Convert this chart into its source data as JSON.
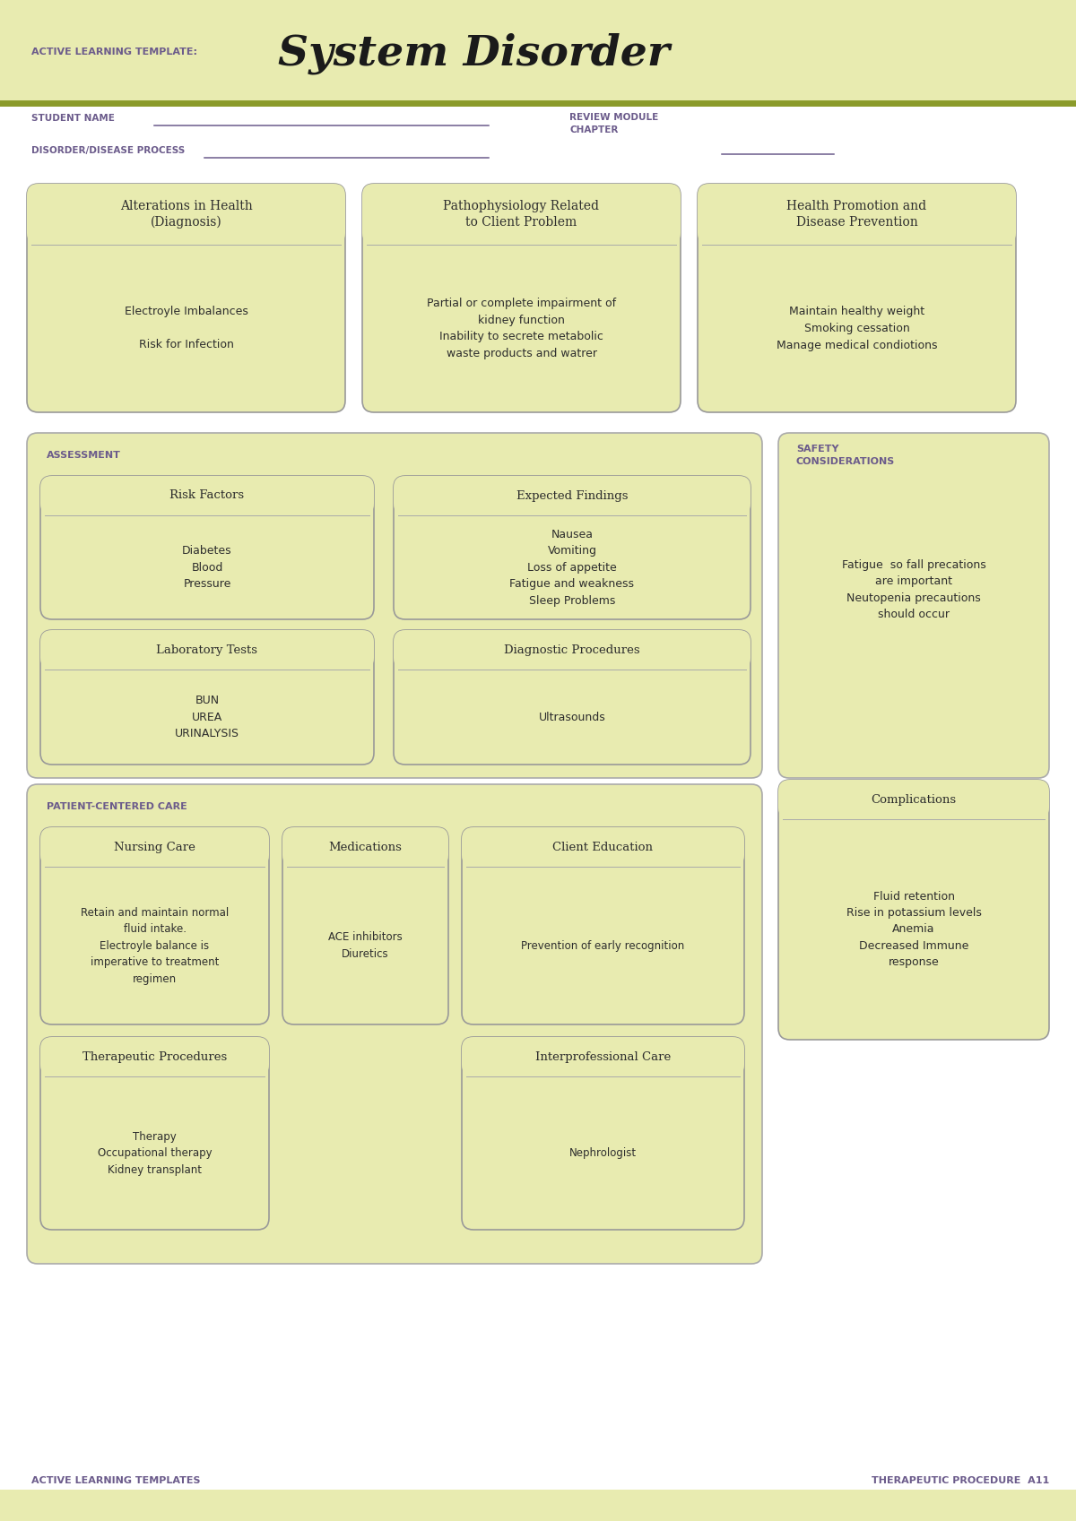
{
  "white": "#ffffff",
  "header_bg": "#e8ebb0",
  "box_bg": "#e8ebb0",
  "box_border": "#aaaaaa",
  "purple_text": "#6b5b8b",
  "dark_text": "#2d2d2d",
  "olive_line": "#8b9b2b",
  "title_large": "System Disorder",
  "title_small": "ACTIVE LEARNING TEMPLATE:",
  "student_name_label": "STUDENT NAME",
  "disorder_label": "DISORDER/DISEASE PROCESS",
  "review_module_label": "REVIEW MODULE\nCHAPTER",
  "assessment_label": "ASSESSMENT",
  "safety_label": "SAFETY\nCONSIDERATIONS",
  "patient_care_label": "PATIENT-CENTERED CARE",
  "footer_left": "ACTIVE LEARNING TEMPLATES",
  "footer_right": "THERAPEUTIC PROCEDURE  A11",
  "box1_title": "Alterations in Health\n(Diagnosis)",
  "box1_content": "Electroyle Imbalances\n\nRisk for Infection",
  "box2_title": "Pathophysiology Related\nto Client Problem",
  "box2_content": "Partial or complete impairment of\nkidney function\nInability to secrete metabolic\nwaste products and watrer",
  "box3_title": "Health Promotion and\nDisease Prevention",
  "box3_content": "Maintain healthy weight\nSmoking cessation\nManage medical condiotions",
  "risk_title": "Risk Factors",
  "risk_content": "Diabetes\nBlood\nPressure",
  "expected_title": "Expected Findings",
  "expected_content": "Nausea\nVomiting\nLoss of appetite\nFatigue and weakness\nSleep Problems",
  "safety_content": "Fatigue  so fall precations\nare important\nNeutopenia precautions\nshould occur",
  "lab_title": "Laboratory Tests",
  "lab_content": "BUN\nUREA\nURINALYSIS",
  "diag_title": "Diagnostic Procedures",
  "diag_content": "Ultrasounds",
  "complications_title": "Complications",
  "complications_content": "Fluid retention\nRise in potassium levels\nAnemia\nDecreased Immune\nresponse",
  "nursing_title": "Nursing Care",
  "nursing_content": "Retain and maintain normal\nfluid intake.\nElectroyle balance is\nimperative to treatment\nregimen",
  "meds_title": "Medications",
  "meds_content": "ACE inhibitors\nDiuretics",
  "client_title": "Client Education",
  "client_content": "Prevention of early recognition",
  "therapy_title": "Therapeutic Procedures",
  "therapy_content": "Therapy\nOccupational therapy\nKidney transplant",
  "interpro_title": "Interprofessional Care",
  "interpro_content": "Nephrologist"
}
